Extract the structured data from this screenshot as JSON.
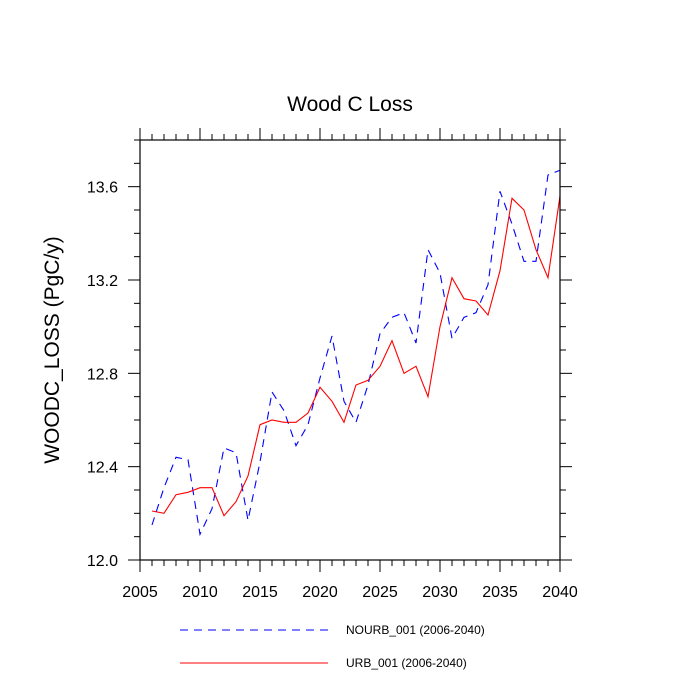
{
  "chart_data": {
    "type": "line",
    "title": "Wood C Loss",
    "xlabel": "",
    "ylabel": "WOODC_LOSS  (PgC/y)",
    "xlim": [
      2005,
      2040
    ],
    "ylim": [
      12.0,
      13.8
    ],
    "xticks": [
      2005,
      2010,
      2015,
      2020,
      2025,
      2030,
      2035,
      2040
    ],
    "xtick_labels": [
      "2005",
      "2010",
      "2015",
      "2020",
      "2025",
      "2030",
      "2035",
      "2040"
    ],
    "yticks": [
      12.0,
      12.4,
      12.8,
      13.2,
      13.6
    ],
    "ytick_labels": [
      "12.0",
      "12.4",
      "12.8",
      "13.2",
      "13.6"
    ],
    "x": [
      2006,
      2007,
      2008,
      2009,
      2010,
      2011,
      2012,
      2013,
      2014,
      2015,
      2016,
      2017,
      2018,
      2019,
      2020,
      2021,
      2022,
      2023,
      2024,
      2025,
      2026,
      2027,
      2028,
      2029,
      2030,
      2031,
      2032,
      2033,
      2034,
      2035,
      2036,
      2037,
      2038,
      2039,
      2040
    ],
    "series": [
      {
        "name": "NOURB_001 (2006-2040)",
        "color": "#0000ff",
        "style": "dashed",
        "values": [
          12.15,
          12.31,
          12.44,
          12.43,
          12.11,
          12.22,
          12.48,
          12.46,
          12.17,
          12.42,
          12.72,
          12.64,
          12.49,
          12.58,
          12.78,
          12.96,
          12.68,
          12.59,
          12.75,
          12.97,
          13.04,
          13.06,
          12.93,
          13.33,
          13.23,
          12.95,
          13.04,
          13.06,
          13.18,
          13.58,
          13.44,
          13.28,
          13.28,
          13.65,
          13.67
        ]
      },
      {
        "name": "URB_001 (2006-2040)",
        "color": "#ff0000",
        "style": "solid",
        "values": [
          12.21,
          12.2,
          12.28,
          12.29,
          12.31,
          12.31,
          12.19,
          12.25,
          12.36,
          12.58,
          12.6,
          12.59,
          12.59,
          12.63,
          12.74,
          12.68,
          12.59,
          12.75,
          12.77,
          12.83,
          12.94,
          12.8,
          12.83,
          12.7,
          13.0,
          13.21,
          13.12,
          13.11,
          13.05,
          13.24,
          13.55,
          13.5,
          13.33,
          13.21,
          13.56
        ]
      }
    ],
    "legend_position": "bottom"
  }
}
